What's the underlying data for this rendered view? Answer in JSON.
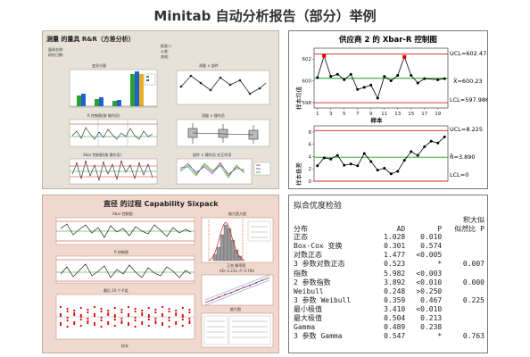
{
  "title": "Minitab 自动分析报告（部分）举例",
  "gage": {
    "title": "测量 的量具 R&R（方差分析）",
    "meta_left": [
      "量具名称:",
      "研究日期:"
    ],
    "meta_right": [
      "报表人:",
      "公差:",
      "其他:"
    ],
    "plots": [
      "变异分量",
      "测量 × 部件",
      "R 控制图(按 操作员)",
      "测量 × 操作员",
      "Xbar 控制图(按 操作员)",
      "部件 × 操作员 交互作用"
    ]
  },
  "xbar": {
    "title": "供应商 2 的 Xbar-R 控制图",
    "mean_ylabel": "样本均值",
    "range_ylabel": "样本极差",
    "xlabel": "样本",
    "x_ticks": [
      "1",
      "3",
      "5",
      "7",
      "9",
      "11",
      "13",
      "15",
      "17",
      "19"
    ],
    "mean_y_ticks": [
      "602",
      "600",
      "598"
    ],
    "range_y_ticks": [
      "8",
      "6",
      "4",
      "2",
      "0"
    ],
    "ucl_mean": "UCL=602.474",
    "center_mean": "X̄=600.23",
    "lcl_mean": "LCL=597.986",
    "ucl_range": "UCL=8.225",
    "center_range": "R̄=3.890",
    "lcl_range": "LCL=0",
    "colors": {
      "ucl": "#d62020",
      "center": "#18a018",
      "series": "#000000",
      "outlier": "#e00000"
    }
  },
  "sixpack": {
    "title": "直径 的过程 Capability Sixpack",
    "plots": [
      "Xbar 控制图",
      "能力直方图",
      "R 控制图",
      "正态 概率图",
      "最后 20 个子组",
      "能力图"
    ],
    "stats": [
      "AD: 0.233, P: 0.794"
    ],
    "xlabel": "样本"
  },
  "fit": {
    "title": "拟合优度检验",
    "headers": {
      "dist": "分布",
      "ad": "AD",
      "p": "P",
      "lrt_l1": "似然比 P",
      "lrt_top": "积大似"
    },
    "rows": [
      [
        "正态",
        "1.028",
        "0.010",
        ""
      ],
      [
        "Box-Cox 变换",
        "0.301",
        "0.574",
        ""
      ],
      [
        "对数正态",
        "1.477",
        "<0.005",
        ""
      ],
      [
        "3 参数对数正态",
        "0.523",
        "*",
        "0.007"
      ],
      [
        "指数",
        "5.982",
        "<0.003",
        ""
      ],
      [
        "2 参数指数",
        "3.892",
        "<0.010",
        "0.000"
      ],
      [
        "Weibull",
        "0.248",
        ">0.250",
        ""
      ],
      [
        "3 参数 Weibull",
        "0.359",
        "0.467",
        "0.225"
      ],
      [
        "最小极值",
        "3.410",
        "<0.010",
        ""
      ],
      [
        "最大极值",
        "0.504",
        "0.213",
        ""
      ],
      [
        "Gamma",
        "0.489",
        "0.238",
        ""
      ],
      [
        "3 参数 Gamma",
        "0.547",
        "*",
        "0.763"
      ]
    ]
  },
  "chart_data": [
    {
      "type": "line",
      "title": "供应商 2 的 Xbar-R 控制图",
      "ylabel": "样本均值",
      "xlabel": "样本",
      "x": [
        1,
        2,
        3,
        4,
        5,
        6,
        7,
        8,
        9,
        10,
        11,
        12,
        13,
        14,
        15,
        16,
        17,
        19,
        20
      ],
      "values": [
        600.3,
        602.3,
        600.4,
        600.6,
        600.1,
        600.6,
        599.2,
        599.4,
        599.6,
        598.4,
        600.4,
        600.0,
        600.5,
        602.2,
        600.5,
        599.8,
        600.2,
        600.1,
        600.2
      ],
      "ucl": 602.474,
      "center": 600.23,
      "lcl": 597.986,
      "ylim": [
        597.5,
        603
      ],
      "out_of_control": [
        2,
        14
      ]
    },
    {
      "type": "line",
      "title": "",
      "ylabel": "样本极差",
      "xlabel": "样本",
      "x": [
        1,
        2,
        3,
        4,
        5,
        6,
        7,
        8,
        9,
        10,
        11,
        12,
        13,
        14,
        15,
        16,
        17,
        18,
        19,
        20
      ],
      "values": [
        2.5,
        3.8,
        3.6,
        4.2,
        2.6,
        2.8,
        2.5,
        4.5,
        3.2,
        1.8,
        2.1,
        1.2,
        1.6,
        3.4,
        4.8,
        4.2,
        5.6,
        6.5,
        6.2,
        7.2
      ],
      "ucl": 8.225,
      "center": 3.89,
      "lcl": 0,
      "ylim": [
        0,
        9
      ]
    }
  ]
}
